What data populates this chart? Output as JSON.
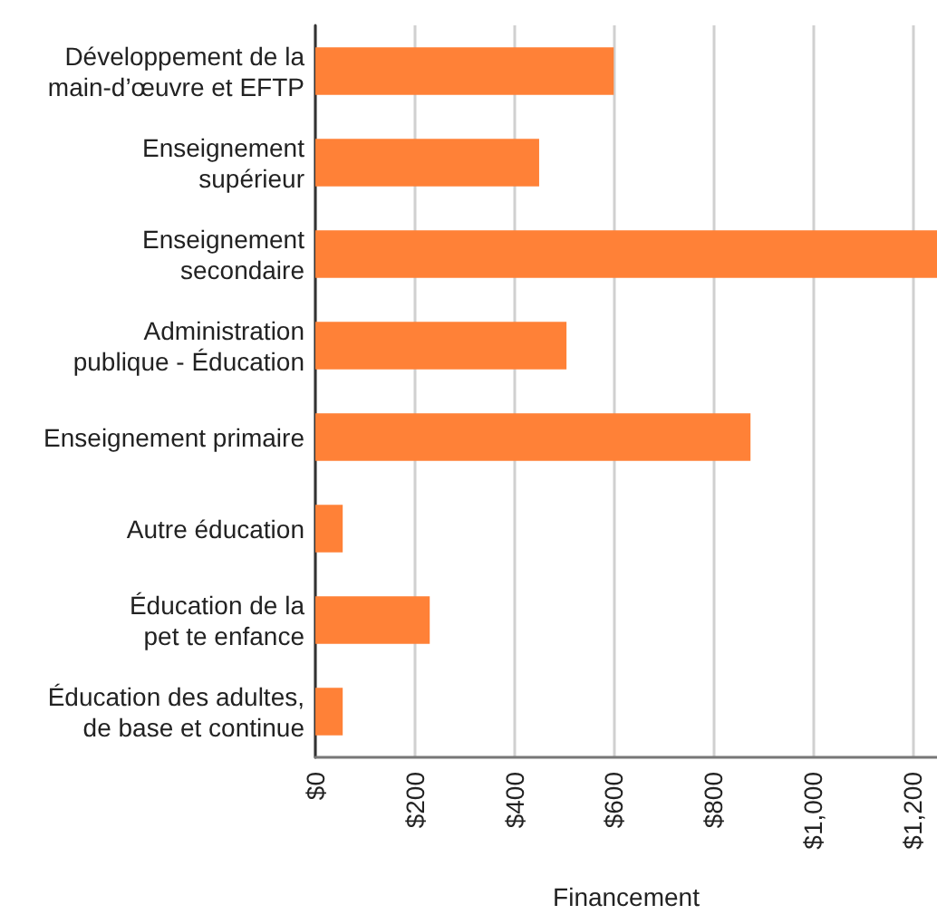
{
  "chart_data": {
    "type": "bar",
    "orientation": "horizontal",
    "xlabel": "Financement",
    "categories": [
      "Développement de la\nmain-d’œuvre et EFTP",
      "Enseignement\nsupérieur",
      "Enseignement\nsecondaire",
      "Administration\npublique - Éducation",
      "Enseignement primaire",
      "Autre éducation",
      "Éducation de la\npet te enfance",
      "Éducation des adultes,\nde base et continue"
    ],
    "values": [
      600,
      450,
      1250,
      505,
      875,
      55,
      230,
      55
    ],
    "color": "#ff8137",
    "xlim": [
      0,
      1250
    ],
    "xticks": [
      {
        "value": 0,
        "label": "$0"
      },
      {
        "value": 200,
        "label": "$200"
      },
      {
        "value": 400,
        "label": "$400"
      },
      {
        "value": 600,
        "label": "$600"
      },
      {
        "value": 800,
        "label": "$800"
      },
      {
        "value": 1000,
        "label": "$1,000"
      },
      {
        "value": 1200,
        "label": "$1,200"
      }
    ],
    "grid": "x"
  }
}
